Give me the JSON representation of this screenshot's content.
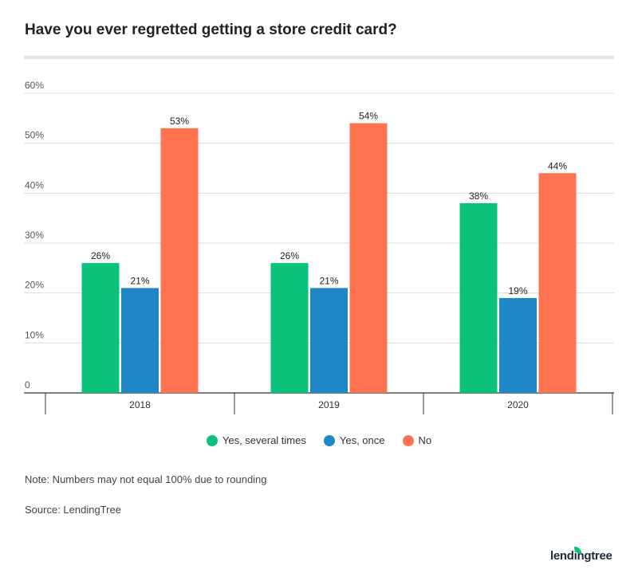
{
  "chart_data": {
    "type": "bar",
    "title": "Have you ever regretted getting a store credit card?",
    "categories": [
      "2018",
      "2019",
      "2020"
    ],
    "series": [
      {
        "name": "Yes, several times",
        "values": [
          26,
          26,
          38
        ],
        "color": "#0bc27a"
      },
      {
        "name": "Yes, once",
        "values": [
          21,
          21,
          19
        ],
        "color": "#1f87c5"
      },
      {
        "name": "No",
        "values": [
          53,
          54,
          44
        ],
        "color": "#ff7350"
      }
    ],
    "ylim": [
      0,
      60
    ],
    "yticks": [
      "0",
      "10%",
      "20%",
      "30%",
      "40%",
      "50%",
      "60%"
    ],
    "grid": true,
    "legend": "bottom",
    "data_label_suffix": "%"
  },
  "note": "Note: Numbers may not equal 100% due to rounding",
  "source": "Source: LendingTree",
  "logo": "lendingtree"
}
